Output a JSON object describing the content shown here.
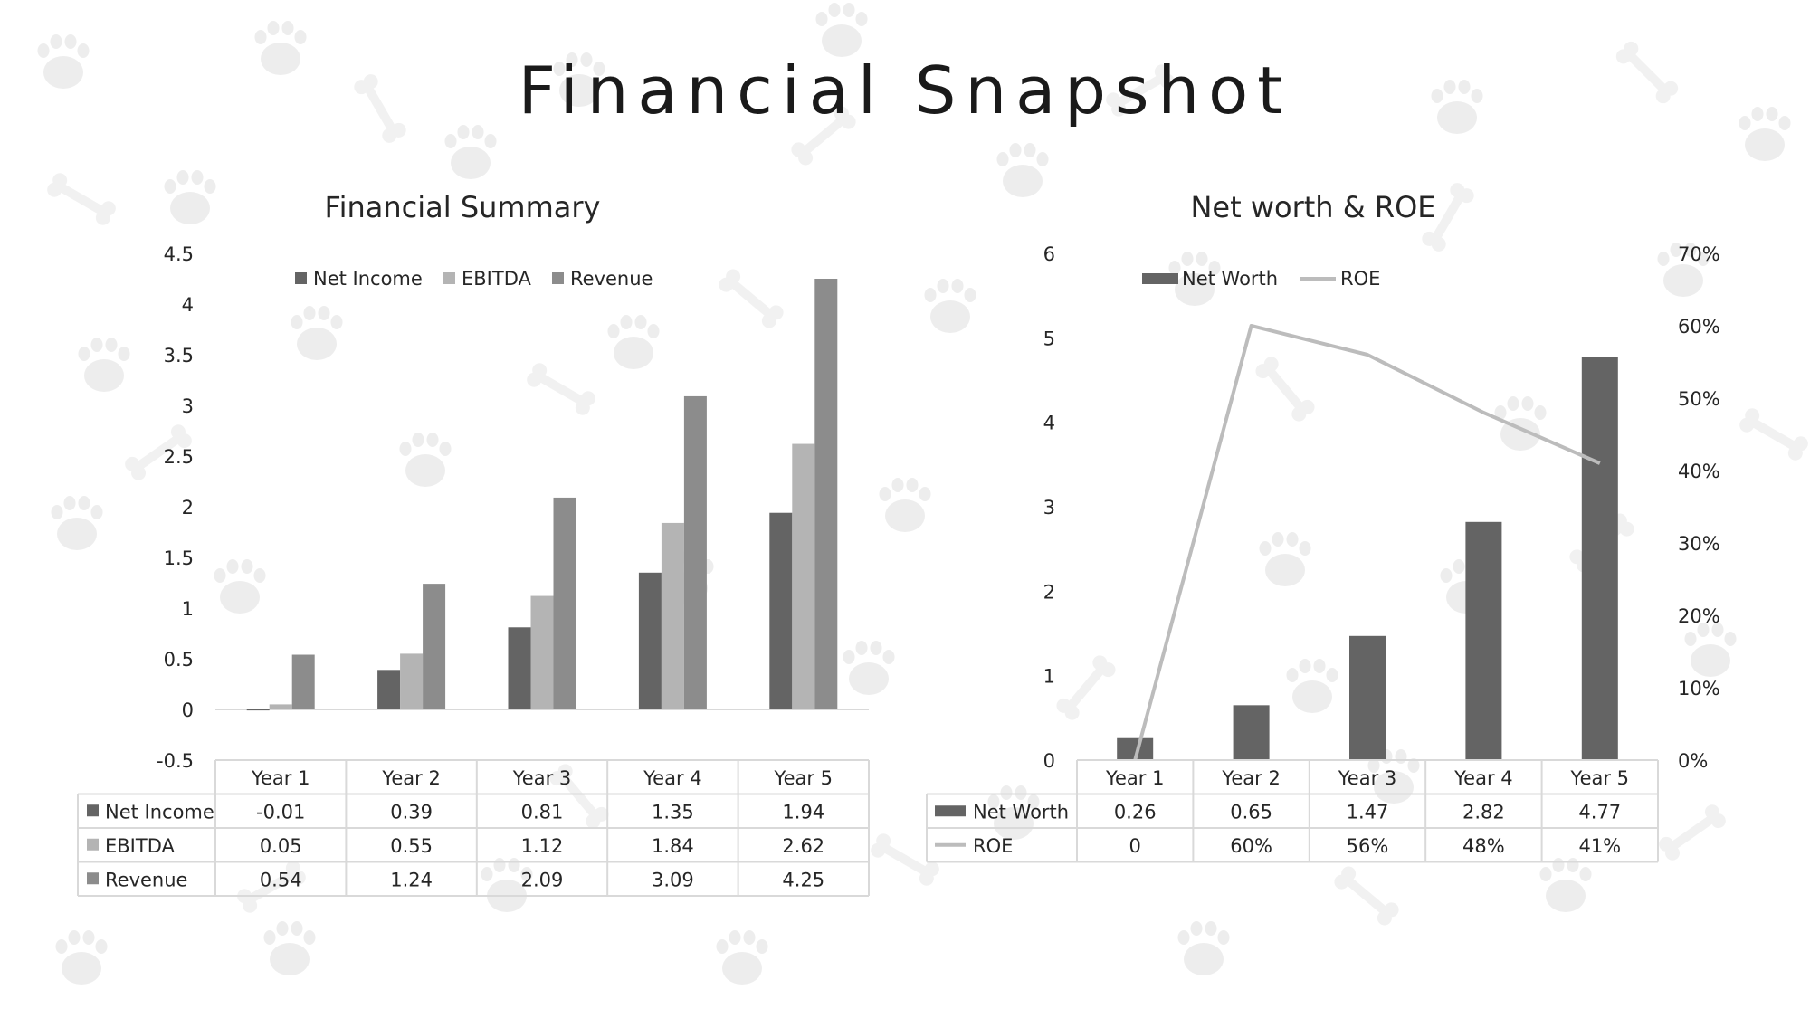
{
  "page": {
    "title": "Financial Snapshot"
  },
  "colors": {
    "net_income": "#646464",
    "ebitda": "#b4b4b4",
    "revenue": "#8c8c8c",
    "net_worth": "#646464",
    "roe": "#bcbcbc",
    "grid": "#d9d9d9",
    "paw": "#ededed"
  },
  "chart_data": [
    {
      "type": "bar",
      "title": "Financial Summary",
      "categories": [
        "Year 1",
        "Year 2",
        "Year 3",
        "Year 4",
        "Year 5"
      ],
      "series": [
        {
          "name": "Net Income",
          "values": [
            -0.01,
            0.39,
            0.81,
            1.35,
            1.94
          ],
          "labels": [
            "-0.01",
            "0.39",
            "0.81",
            "1.35",
            "1.94"
          ]
        },
        {
          "name": "EBITDA",
          "values": [
            0.05,
            0.55,
            1.12,
            1.84,
            2.62
          ],
          "labels": [
            "0.05",
            "0.55",
            "1.12",
            "1.84",
            "2.62"
          ]
        },
        {
          "name": "Revenue",
          "values": [
            0.54,
            1.24,
            2.09,
            3.09,
            4.25
          ],
          "labels": [
            "0.54",
            "1.24",
            "2.09",
            "3.09",
            "4.25"
          ]
        }
      ],
      "ylim": [
        -0.5,
        4.5
      ],
      "yticks": [
        "-0.5",
        "0",
        "0.5",
        "1",
        "1.5",
        "2",
        "2.5",
        "3",
        "3.5",
        "4",
        "4.5"
      ],
      "legend": "top",
      "data_table": true,
      "grid": false
    },
    {
      "type": "bar",
      "title": "Net worth & ROE",
      "categories": [
        "Year 1",
        "Year 2",
        "Year 3",
        "Year 4",
        "Year 5"
      ],
      "series": [
        {
          "name": "Net Worth",
          "type": "bar",
          "axis": "left",
          "values": [
            0.26,
            0.65,
            1.47,
            2.82,
            4.77
          ],
          "labels": [
            "0.26",
            "0.65",
            "1.47",
            "2.82",
            "4.77"
          ]
        },
        {
          "name": "ROE",
          "type": "line",
          "axis": "right",
          "values": [
            0,
            0.6,
            0.56,
            0.48,
            0.41
          ],
          "labels": [
            "0",
            "60%",
            "56%",
            "48%",
            "41%"
          ]
        }
      ],
      "ylim": [
        0,
        6
      ],
      "yticks": [
        "0",
        "1",
        "2",
        "3",
        "4",
        "5",
        "6"
      ],
      "y2lim": [
        0,
        0.7
      ],
      "y2ticks": [
        "0%",
        "10%",
        "20%",
        "30%",
        "40%",
        "50%",
        "60%",
        "70%"
      ],
      "legend": "top",
      "data_table": true,
      "grid": false
    }
  ]
}
